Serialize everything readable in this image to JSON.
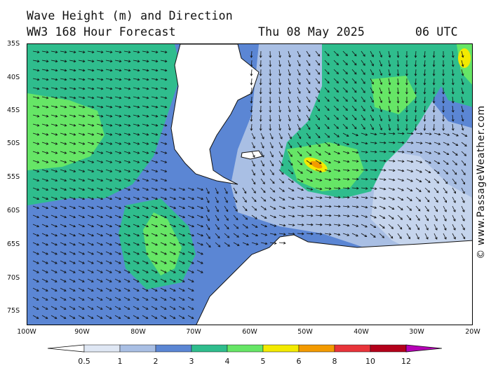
{
  "header": {
    "title_line1": "Wave Height (m) and Direction",
    "title_line2": "WW3 168 Hour Forecast",
    "date": "Thu 08 May 2025",
    "time": "06 UTC"
  },
  "watermark": "© www.PassageWeather.com",
  "axes": {
    "lat_labels": [
      "35S",
      "40S",
      "45S",
      "50S",
      "55S",
      "60S",
      "65S",
      "70S",
      "75S"
    ],
    "lon_labels": [
      "100W",
      "90W",
      "80W",
      "70W",
      "60W",
      "50W",
      "40W",
      "30W",
      "20W"
    ]
  },
  "legend": {
    "tick_labels": [
      "0.5",
      "1",
      "2",
      "3",
      "4",
      "5",
      "6",
      "8",
      "10",
      "12"
    ],
    "colors": [
      "#dfe7f4",
      "#a9bfe4",
      "#5b86d4",
      "#2fbd8d",
      "#66e666",
      "#f3ea00",
      "#f39a00",
      "#e8343a",
      "#b3001a",
      "#b600b6"
    ]
  },
  "colors": {
    "land": "#ffffff",
    "wave_0_5_1": "#dfe7f4",
    "wave_1_2": "#a9bfe4",
    "wave_2_3": "#5b86d4",
    "wave_3_4": "#2fbd8d",
    "wave_4_5": "#66e666",
    "wave_5_6": "#f3ea00",
    "wave_6_8": "#f39a00"
  }
}
